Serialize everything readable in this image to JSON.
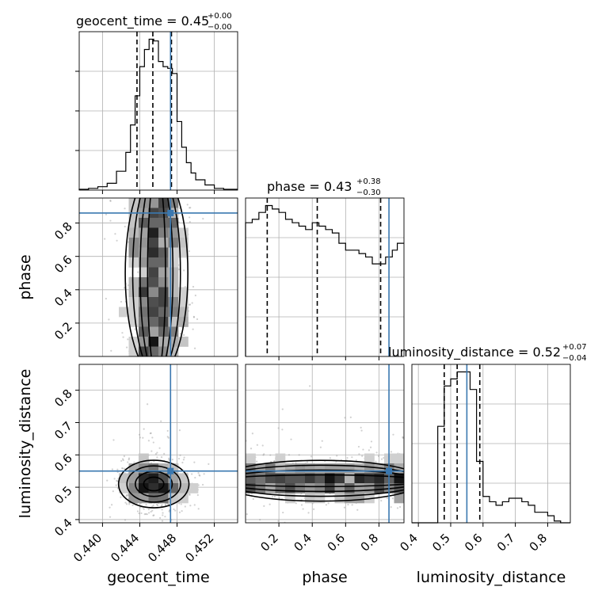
{
  "chart_data": {
    "type": "corner",
    "parameters": [
      "geocent_time",
      "phase",
      "luminosity_distance"
    ],
    "truth": {
      "geocent_time": 0.4473,
      "phase": 0.86,
      "luminosity_distance": 0.55
    },
    "truth_color": "#3a78b0",
    "grid": true,
    "diagonal": [
      {
        "param": "geocent_time",
        "title_text": "geocent_time = 0.45",
        "title_plus": "+0.00",
        "title_minus": "−0.00",
        "quantiles": [
          0.4437,
          0.4454,
          0.4474
        ],
        "xlim": [
          0.4375,
          0.4545
        ],
        "bins": [
          0.4375,
          0.4385,
          0.4395,
          0.4405,
          0.4415,
          0.4425,
          0.443,
          0.4435,
          0.444,
          0.4445,
          0.445,
          0.4455,
          0.446,
          0.4465,
          0.447,
          0.4475,
          0.448,
          0.4485,
          0.449,
          0.4495,
          0.45,
          0.451,
          0.452,
          0.453,
          0.4545
        ],
        "counts": [
          0.5,
          1,
          2,
          4,
          11,
          22,
          38,
          55,
          72,
          82,
          88,
          87,
          75,
          72,
          71,
          68,
          40,
          25,
          16,
          10,
          6,
          3,
          1,
          0.5
        ]
      },
      {
        "param": "phase",
        "title_text": "phase = 0.43",
        "title_plus": "+0.38",
        "title_minus": "−0.30",
        "quantiles": [
          0.13,
          0.43,
          0.81
        ],
        "xlim": [
          0.0,
          0.95
        ],
        "bins": [
          0.0,
          0.04,
          0.08,
          0.12,
          0.16,
          0.2,
          0.24,
          0.28,
          0.32,
          0.36,
          0.4,
          0.44,
          0.48,
          0.52,
          0.56,
          0.6,
          0.64,
          0.68,
          0.72,
          0.76,
          0.8,
          0.84,
          0.88,
          0.91,
          0.95
        ],
        "counts": [
          78,
          80,
          84,
          88,
          86,
          84,
          80,
          78,
          76,
          74,
          78,
          76,
          74,
          72,
          66,
          62,
          62,
          60,
          58,
          54,
          54,
          58,
          62,
          66
        ]
      },
      {
        "param": "luminosity_distance",
        "title_text": "luminosity_distance = 0.52",
        "title_plus": "+0.07",
        "title_minus": "−0.04",
        "quantiles": [
          0.48,
          0.52,
          0.59
        ],
        "xlim": [
          0.38,
          0.87
        ],
        "bins": [
          0.38,
          0.46,
          0.48,
          0.5,
          0.52,
          0.54,
          0.56,
          0.58,
          0.6,
          0.62,
          0.64,
          0.66,
          0.68,
          0.7,
          0.72,
          0.74,
          0.76,
          0.78,
          0.8,
          0.82,
          0.84,
          0.87
        ],
        "counts": [
          0,
          55,
          78,
          82,
          86,
          86,
          76,
          35,
          15,
          12,
          10,
          12,
          14,
          14,
          12,
          10,
          6,
          6,
          4,
          1,
          0
        ]
      }
    ],
    "panels": [
      {
        "x": "geocent_time",
        "y": "phase",
        "xlim": [
          0.4375,
          0.4545
        ],
        "ylim": [
          0.0,
          0.95
        ],
        "cx": 0.4458,
        "cy": 0.5,
        "sx": 0.0016,
        "sy": 0.3,
        "uniform_y": true
      },
      {
        "x": "geocent_time",
        "y": "luminosity_distance",
        "xlim": [
          0.4375,
          0.4545
        ],
        "ylim": [
          0.39,
          0.88
        ],
        "cx": 0.4455,
        "cy": 0.51,
        "sx": 0.0018,
        "sy": 0.035
      },
      {
        "x": "phase",
        "y": "luminosity_distance",
        "xlim": [
          0.0,
          0.95
        ],
        "ylim": [
          0.39,
          0.88
        ],
        "cx": 0.45,
        "cy": 0.52,
        "sx": 0.3,
        "sy": 0.03,
        "uniform_x": true
      }
    ],
    "axes": {
      "geocent_time": {
        "label": "geocent_time",
        "ticks": [
          0.44,
          0.444,
          0.448,
          0.452
        ],
        "tick_labels": [
          "0.440",
          "0.444",
          "0.448",
          "0.452"
        ]
      },
      "phase": {
        "label": "phase",
        "ticks": [
          0.2,
          0.4,
          0.6,
          0.8
        ],
        "tick_labels": [
          "0.2",
          "0.4",
          "0.6",
          "0.8"
        ]
      },
      "luminosity_distance": {
        "label": "luminosity_distance",
        "ticks": [
          0.4,
          0.5,
          0.6,
          0.7,
          0.8
        ],
        "tick_labels": [
          "0.4",
          "0.5",
          "0.6",
          "0.7",
          "0.8"
        ]
      }
    }
  }
}
